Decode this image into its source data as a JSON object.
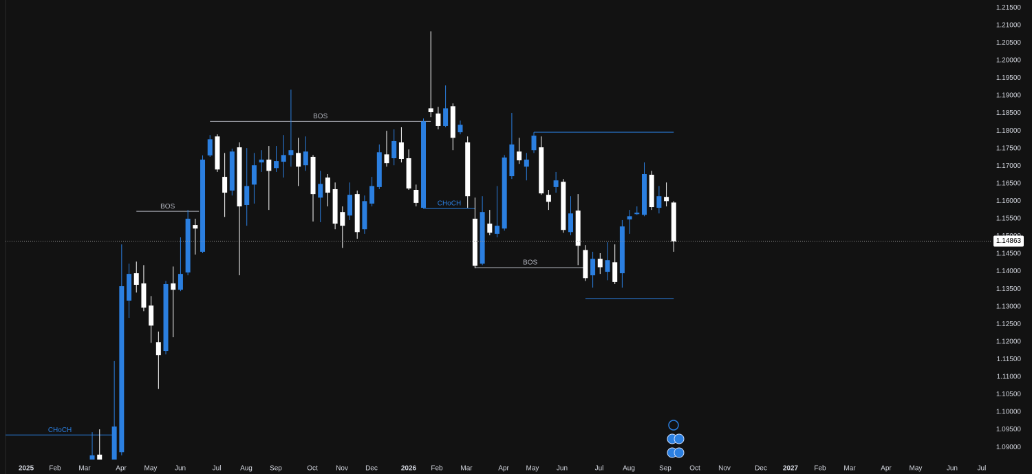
{
  "chart_data": {
    "type": "candlestick",
    "up_color": "#2b7fe0",
    "down_color": "#ffffff",
    "x": [
      0,
      1,
      3,
      4,
      5,
      6,
      7,
      8,
      9,
      10,
      11,
      12,
      13,
      14,
      15,
      16,
      17,
      18,
      19,
      20,
      21,
      22,
      23,
      24,
      25,
      26,
      27,
      28,
      29,
      30,
      31,
      32,
      33,
      34,
      35,
      36,
      37,
      38,
      39,
      40,
      41,
      42,
      43,
      44,
      45,
      46,
      47,
      48,
      49,
      50,
      51,
      52,
      53,
      54,
      55,
      56,
      57,
      58,
      59,
      60,
      61,
      62,
      63,
      64,
      65,
      66,
      67,
      68,
      69,
      70,
      71,
      72,
      73,
      74,
      75,
      76,
      77,
      78,
      79
    ],
    "open": [
      1.0865,
      1.0879,
      1.0865,
      1.0886,
      1.1317,
      1.1395,
      1.1366,
      1.1303,
      1.1199,
      1.1174,
      1.1366,
      1.1348,
      1.1397,
      1.1532,
      1.1456,
      1.173,
      1.1784,
      1.1669,
      1.163,
      1.1753,
      1.1589,
      1.1647,
      1.171,
      1.1718,
      1.1694,
      1.1712,
      1.1731,
      1.1737,
      1.1702,
      1.1726,
      1.161,
      1.1667,
      1.1634,
      1.1569,
      1.1559,
      1.162,
      1.152,
      1.1593,
      1.164,
      1.1733,
      1.1722,
      1.1767,
      1.1722,
      1.1632,
      1.1581,
      1.1864,
      1.1849,
      1.1814,
      1.187,
      1.1796,
      1.1767,
      1.155,
      1.1422,
      1.1536,
      1.1507,
      1.1522,
      1.1671,
      1.1741,
      1.1698,
      1.1745,
      1.1753,
      1.1618,
      1.164,
      1.1655,
      1.1512,
      1.1573,
      1.1461,
      1.1389,
      1.1436,
      1.1399,
      1.1426,
      1.1395,
      1.1548,
      1.1563,
      1.1561,
      1.1675,
      1.1581,
      1.1612,
      1.1596
    ],
    "high": [
      1.0943,
      1.0951,
      1.1145,
      1.1477,
      1.1422,
      1.1428,
      1.1418,
      1.133,
      1.1229,
      1.1373,
      1.1414,
      1.1497,
      1.1575,
      1.155,
      1.173,
      1.1788,
      1.179,
      1.1737,
      1.1749,
      1.1767,
      1.1751,
      1.1737,
      1.1745,
      1.1757,
      1.1757,
      1.1788,
      1.1917,
      1.178,
      1.1784,
      1.1731,
      1.1686,
      1.1677,
      1.1653,
      1.1585,
      1.1653,
      1.163,
      1.1616,
      1.1669,
      1.1761,
      1.18,
      1.1804,
      1.181,
      1.1747,
      1.1647,
      1.1835,
      1.2083,
      1.1868,
      1.1929,
      1.1878,
      1.1829,
      1.1784,
      1.161,
      1.1614,
      1.1575,
      1.1643,
      1.1731,
      1.1851,
      1.178,
      1.1737,
      1.1796,
      1.1784,
      1.1632,
      1.1683,
      1.1663,
      1.1614,
      1.162,
      1.1475,
      1.1456,
      1.1452,
      1.1483,
      1.1477,
      1.1546,
      1.1575,
      1.1585,
      1.171,
      1.1686,
      1.1643,
      1.1653,
      1.16
    ],
    "low": [
      1.0865,
      1.0865,
      1.0865,
      1.0877,
      1.1268,
      1.134,
      1.1287,
      1.1197,
      1.1066,
      1.1164,
      1.1213,
      1.1344,
      1.1389,
      1.1448,
      1.1452,
      1.1726,
      1.1683,
      1.1555,
      1.1616,
      1.1389,
      1.153,
      1.1593,
      1.1683,
      1.1575,
      1.1683,
      1.1667,
      1.1698,
      1.1643,
      1.1686,
      1.1542,
      1.154,
      1.1585,
      1.152,
      1.1467,
      1.1546,
      1.1493,
      1.1507,
      1.1585,
      1.1634,
      1.1698,
      1.1702,
      1.171,
      1.1632,
      1.1585,
      1.1579,
      1.1839,
      1.1804,
      1.181,
      1.1745,
      1.179,
      1.1581,
      1.1409,
      1.1418,
      1.1503,
      1.1497,
      1.1516,
      1.1663,
      1.1706,
      1.1659,
      1.1737,
      1.1618,
      1.1575,
      1.1624,
      1.151,
      1.1503,
      1.1418,
      1.1373,
      1.1354,
      1.1393,
      1.1375,
      1.1364,
      1.1354,
      1.1507,
      1.1561,
      1.1557,
      1.1575,
      1.1565,
      1.1585,
      1.1456
    ],
    "close": [
      1.0877,
      1.0865,
      1.0959,
      1.1358,
      1.1393,
      1.1362,
      1.1297,
      1.1246,
      1.1162,
      1.1364,
      1.1348,
      1.1393,
      1.155,
      1.1522,
      1.1718,
      1.1776,
      1.169,
      1.1624,
      1.1741,
      1.1585,
      1.1643,
      1.1702,
      1.1718,
      1.1686,
      1.1714,
      1.1731,
      1.1745,
      1.1698,
      1.1741,
      1.162,
      1.1649,
      1.1624,
      1.1536,
      1.153,
      1.1618,
      1.1512,
      1.16,
      1.1643,
      1.1739,
      1.1708,
      1.1771,
      1.172,
      1.1636,
      1.1595,
      1.1827,
      1.1853,
      1.1814,
      1.1864,
      1.178,
      1.1817,
      1.1614,
      1.1416,
      1.1569,
      1.151,
      1.153,
      1.1724,
      1.1761,
      1.1716,
      1.1718,
      1.1786,
      1.1622,
      1.1598,
      1.1659,
      1.1518,
      1.1565,
      1.1473,
      1.1381,
      1.1436,
      1.1412,
      1.1432,
      1.137,
      1.1528,
      1.1557,
      1.1567,
      1.1677,
      1.1583,
      1.1614,
      1.16,
      1.1485
    ],
    "annotations": [
      {
        "label": "CHoCH",
        "price": 1.0935,
        "x": [
          -11.78,
          3
        ],
        "color": "#2b7fe0"
      },
      {
        "label": "BOS",
        "price": 1.1571,
        "x": [
          6,
          14.5
        ],
        "color": "#b2b5be"
      },
      {
        "label": "BOS",
        "price": 1.1827,
        "x": [
          16,
          46
        ],
        "color": "#b2b5be"
      },
      {
        "label": "CHoCH",
        "price": 1.1579,
        "x": [
          45,
          52
        ],
        "color": "#2b7fe0"
      },
      {
        "label": "BOS",
        "price": 1.1411,
        "x": [
          52,
          67
        ],
        "color": "#b2b5be"
      },
      {
        "price": 1.1796,
        "x": [
          60,
          79
        ],
        "color": "#2b7fe0"
      },
      {
        "price": 1.1323,
        "x": [
          67,
          79
        ],
        "color": "#2b7fe0"
      }
    ],
    "last_price": 1.14863,
    "xlim": [
      -11.78,
      122.06
    ],
    "ylim": [
      1.0865,
      1.2172
    ],
    "xticks": [
      {
        "value": -8.97,
        "label": "2025"
      },
      {
        "value": -5.05,
        "label": "Feb"
      },
      {
        "value": -1.03,
        "label": "Mar"
      },
      {
        "value": 3.93,
        "label": "Apr"
      },
      {
        "value": 7.94,
        "label": "May"
      },
      {
        "value": 11.96,
        "label": "Jun"
      },
      {
        "value": 16.92,
        "label": "Jul"
      },
      {
        "value": 20.93,
        "label": "Aug"
      },
      {
        "value": 24.95,
        "label": "Sep"
      },
      {
        "value": 29.91,
        "label": "Oct"
      },
      {
        "value": 33.93,
        "label": "Nov"
      },
      {
        "value": 37.94,
        "label": "Dec"
      },
      {
        "value": 42.99,
        "label": "2026"
      },
      {
        "value": 46.82,
        "label": "Feb"
      },
      {
        "value": 50.84,
        "label": "Mar"
      },
      {
        "value": 55.89,
        "label": "Apr"
      },
      {
        "value": 59.81,
        "label": "May"
      },
      {
        "value": 63.83,
        "label": "Jun"
      },
      {
        "value": 68.88,
        "label": "Jul"
      },
      {
        "value": 72.9,
        "label": "Aug"
      },
      {
        "value": 77.85,
        "label": "Sep"
      },
      {
        "value": 81.87,
        "label": "Oct"
      },
      {
        "value": 85.89,
        "label": "Nov"
      },
      {
        "value": 90.84,
        "label": "Dec"
      },
      {
        "value": 94.86,
        "label": "2027"
      },
      {
        "value": 98.88,
        "label": "Feb"
      },
      {
        "value": 102.9,
        "label": "Mar"
      },
      {
        "value": 107.85,
        "label": "Apr"
      },
      {
        "value": 111.87,
        "label": "May"
      },
      {
        "value": 116.82,
        "label": "Jun"
      },
      {
        "value": 120.84,
        "label": "Jul"
      }
    ],
    "yticks": [
      {
        "value": 1.09,
        "label": "1.09000"
      },
      {
        "value": 1.095,
        "label": "1.09500"
      },
      {
        "value": 1.1,
        "label": "1.10000"
      },
      {
        "value": 1.105,
        "label": "1.10500"
      },
      {
        "value": 1.11,
        "label": "1.11000"
      },
      {
        "value": 1.115,
        "label": "1.11500"
      },
      {
        "value": 1.12,
        "label": "1.12000"
      },
      {
        "value": 1.125,
        "label": "1.12500"
      },
      {
        "value": 1.13,
        "label": "1.13000"
      },
      {
        "value": 1.135,
        "label": "1.13500"
      },
      {
        "value": 1.14,
        "label": "1.14000"
      },
      {
        "value": 1.145,
        "label": "1.14500"
      },
      {
        "value": 1.15,
        "label": "1.15000"
      },
      {
        "value": 1.155,
        "label": "1.15500"
      },
      {
        "value": 1.16,
        "label": "1.16000"
      },
      {
        "value": 1.165,
        "label": "1.16500"
      },
      {
        "value": 1.17,
        "label": "1.17000"
      },
      {
        "value": 1.175,
        "label": "1.17500"
      },
      {
        "value": 1.18,
        "label": "1.18000"
      },
      {
        "value": 1.185,
        "label": "1.18500"
      },
      {
        "value": 1.19,
        "label": "1.19000"
      },
      {
        "value": 1.195,
        "label": "1.19500"
      },
      {
        "value": 1.2,
        "label": "1.20000"
      },
      {
        "value": 1.205,
        "label": "1.20500"
      },
      {
        "value": 1.21,
        "label": "1.21000"
      },
      {
        "value": 1.215,
        "label": "1.21500"
      }
    ]
  }
}
